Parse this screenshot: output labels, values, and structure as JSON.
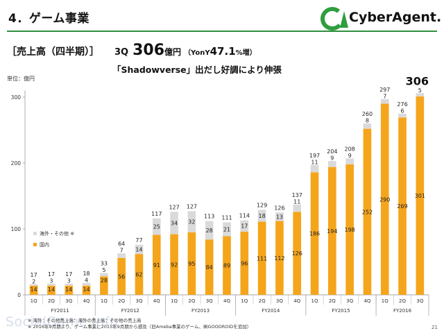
{
  "header": {
    "page_title": "4．ゲーム事業",
    "logo_text": "CyberAgent."
  },
  "headline": {
    "bracket_label": "［売上高（四半期）］",
    "quarter": "3Q",
    "value": "306",
    "unit": "億円",
    "yoy_prefix": "（YonY",
    "yoy_value": "47.1",
    "yoy_suffix": "%増）"
  },
  "subtitle": "「Shadowverse」出だし好調により伸張",
  "unit_label": "単位：億円",
  "callout_total": "306",
  "footnote": {
    "line1": "※ 海外：その他売上高：海外の売上高：その他の売上高",
    "line2": "※ 2016年9月期より、ゲーム事業に2015年9月期から遡及（旧Ameba事業のゲーム、㈱GOODROIDを追加）"
  },
  "page_number": "21",
  "watermark": "SocialGame.Info",
  "colors": {
    "domestic": "#f5a51b",
    "overseas": "#dadada",
    "rule": "#2f8f3f"
  },
  "chart_data": {
    "type": "bar",
    "stacked": true,
    "categories": [
      "1Q",
      "2Q",
      "3Q",
      "4Q",
      "1Q",
      "2Q",
      "3Q",
      "4Q",
      "1Q",
      "2Q",
      "3Q",
      "4Q",
      "1Q",
      "2Q",
      "3Q",
      "4Q",
      "1Q",
      "2Q",
      "3Q",
      "4Q",
      "1Q",
      "2Q",
      "3Q"
    ],
    "groups": [
      {
        "name": "FY2011",
        "count": 4
      },
      {
        "name": "FY2012",
        "count": 4
      },
      {
        "name": "FY2013",
        "count": 4
      },
      {
        "name": "FY2014",
        "count": 4
      },
      {
        "name": "FY2015",
        "count": 4
      },
      {
        "name": "FY2016",
        "count": 3
      }
    ],
    "series": [
      {
        "name": "国内",
        "values": [
          14,
          14,
          14,
          14,
          28,
          56,
          62,
          91,
          92,
          95,
          84,
          89,
          96,
          111,
          112,
          126,
          186,
          194,
          198,
          252,
          290,
          269,
          301
        ]
      },
      {
        "name": "海外・その他 ※",
        "values": [
          2,
          3,
          3,
          4,
          5,
          7,
          14,
          25,
          34,
          32,
          28,
          21,
          17,
          18,
          13,
          11,
          11,
          9,
          9,
          8,
          7,
          6,
          5
        ]
      }
    ],
    "totals": [
      17,
      17,
      17,
      18,
      33,
      64,
      77,
      117,
      127,
      127,
      113,
      111,
      114,
      129,
      126,
      137,
      197,
      204,
      208,
      260,
      297,
      276,
      306
    ],
    "yticks": [
      0,
      100,
      200,
      300
    ],
    "ylim": [
      0,
      310
    ],
    "legend_position": "left"
  }
}
